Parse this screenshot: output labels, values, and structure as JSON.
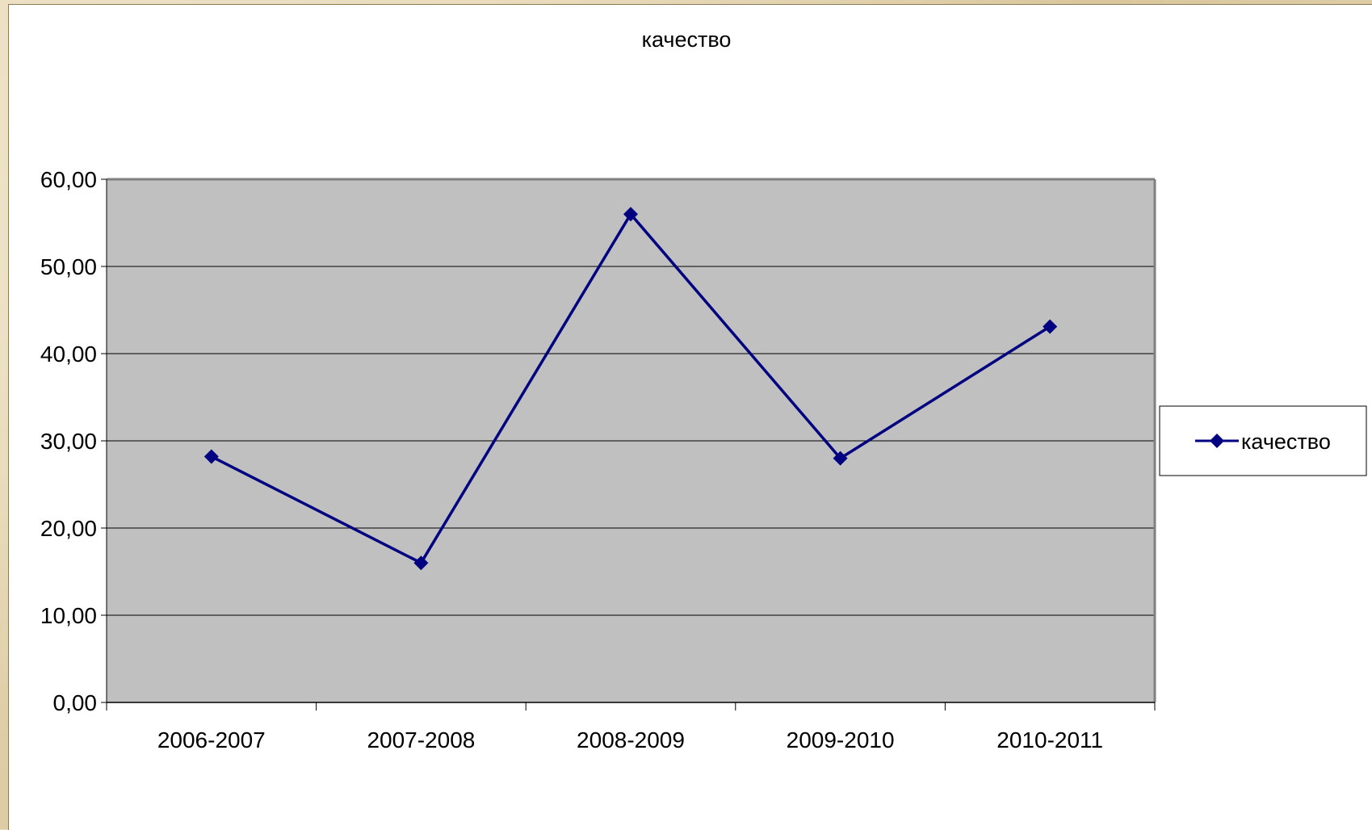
{
  "chart_data": {
    "type": "line",
    "title": "качество",
    "categories": [
      "2006-2007",
      "2007-2008",
      "2008-2009",
      "2009-2010",
      "2010-2011"
    ],
    "series": [
      {
        "name": "качество",
        "values": [
          28.2,
          16.0,
          56.0,
          28.0,
          43.1
        ],
        "color": "#000080"
      }
    ],
    "ylim": [
      0,
      60
    ],
    "yticks": [
      "0,00",
      "10,00",
      "20,00",
      "30,00",
      "40,00",
      "50,00",
      "60,00"
    ],
    "xlabel": "",
    "ylabel": "",
    "grid": true,
    "legend": "right",
    "plot_background": "#c0c0c0",
    "marker": "diamond"
  }
}
